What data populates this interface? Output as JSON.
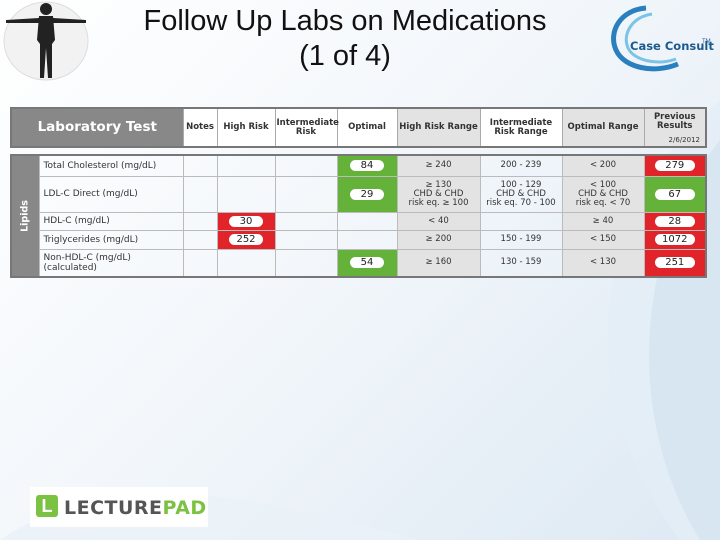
{
  "slide": {
    "title_line1": "Follow Up Labs on Medications",
    "title_line2": "(1 of 4)"
  },
  "logos": {
    "case_consult": "Case Consult",
    "case_consult_tm": "TM",
    "lecturepad_a": "LECTURE",
    "lecturepad_b": "PAD"
  },
  "table": {
    "header": {
      "lab": "Laboratory Test",
      "notes": "Notes",
      "high_risk": "High Risk",
      "intermediate_risk": "Intermediate Risk",
      "optimal": "Optimal",
      "high_risk_range": "High Risk Range",
      "intermediate_risk_range": "Intermediate Risk Range",
      "optimal_range": "Optimal Range",
      "previous_results": "Previous Results",
      "previous_date": "2/6/2012"
    },
    "group_label": "Lipids",
    "rows": [
      {
        "test": "Total Cholesterol (mg/dL)",
        "high_risk": "",
        "intermediate": "",
        "optimal": "84",
        "hr_range": "≥ 240",
        "ir_range": "200 - 239",
        "opt_range": "< 200",
        "previous": "279"
      },
      {
        "test": "LDL-C Direct (mg/dL)",
        "high_risk": "",
        "intermediate": "",
        "optimal": "29",
        "hr_range": "≥ 130\nCHD & CHD\nrisk eq. ≥ 100",
        "ir_range": "100 - 129\nCHD & CHD\nrisk eq. 70 - 100",
        "opt_range": "< 100\nCHD & CHD\nrisk eq. < 70",
        "previous": "67"
      },
      {
        "test": "HDL-C (mg/dL)",
        "high_risk": "30",
        "intermediate": "",
        "optimal": "",
        "hr_range": "< 40",
        "ir_range": "",
        "opt_range": "≥ 40",
        "previous": "28"
      },
      {
        "test": "Triglycerides (mg/dL)",
        "high_risk": "252",
        "intermediate": "",
        "optimal": "",
        "hr_range": "≥ 200",
        "ir_range": "150 - 199",
        "opt_range": "< 150",
        "previous": "1072"
      },
      {
        "test": "Non-HDL-C (mg/dL)\n(calculated)",
        "high_risk": "",
        "intermediate": "",
        "optimal": "54",
        "hr_range": "≥ 160",
        "ir_range": "130 - 159",
        "opt_range": "< 130",
        "previous": "251"
      }
    ]
  },
  "colors": {
    "optimal": "#65b23b",
    "high_risk": "#e0242a",
    "header_grey": "#888888"
  }
}
